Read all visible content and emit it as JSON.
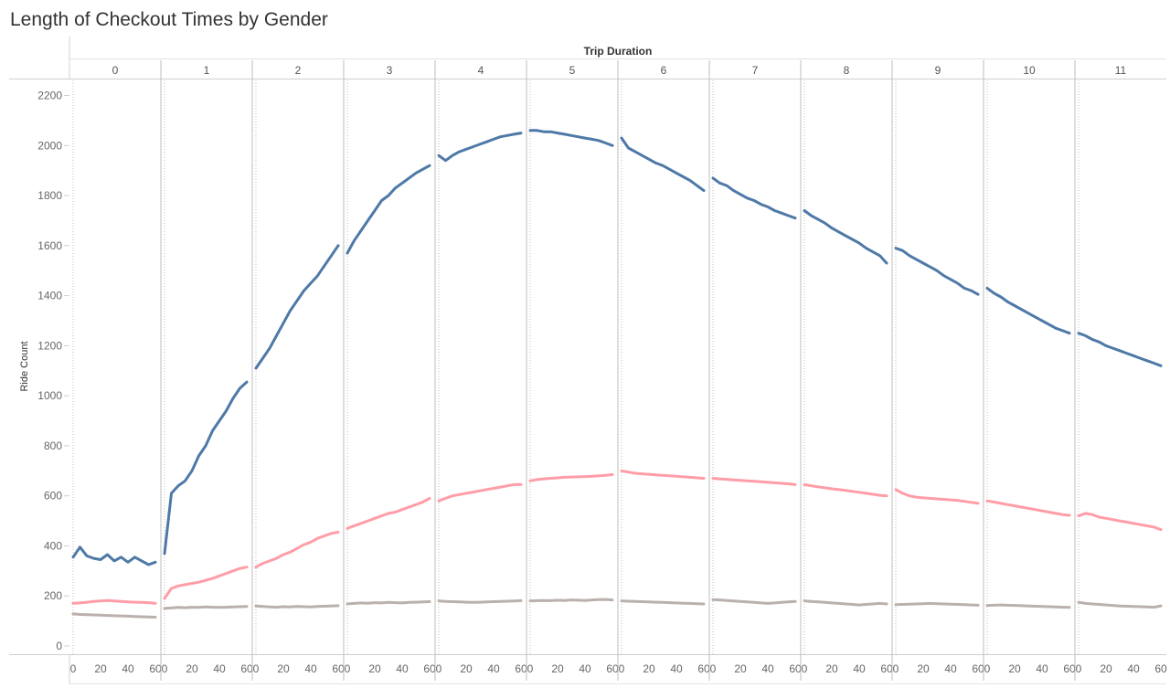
{
  "chart_data": {
    "type": "line",
    "title": "Length of Checkout Times by Gender",
    "column_header": "Trip Duration",
    "ylabel": "Ride Count",
    "ylim": [
      0,
      2250
    ],
    "yticks": [
      0,
      200,
      400,
      600,
      800,
      1000,
      1200,
      1400,
      1600,
      1800,
      2000,
      2200
    ],
    "panels": [
      "0",
      "1",
      "2",
      "3",
      "4",
      "5",
      "6",
      "7",
      "8",
      "9",
      "10",
      "11"
    ],
    "panel_xlim": [
      0,
      60
    ],
    "panel_xticks": [
      0,
      20,
      40,
      60
    ],
    "x_sample_step": 5,
    "gridlines": "dotted vertical at x=0 in each panel",
    "series": [
      {
        "color": "#4e79a7",
        "panels": [
          [
            355,
            395,
            360,
            350,
            345,
            365,
            340,
            355,
            335,
            355,
            340,
            325,
            335
          ],
          [
            370,
            610,
            640,
            660,
            700,
            760,
            800,
            860,
            900,
            940,
            990,
            1030,
            1055
          ],
          [
            1110,
            1150,
            1190,
            1240,
            1290,
            1340,
            1380,
            1420,
            1450,
            1480,
            1520,
            1560,
            1600
          ],
          [
            1570,
            1620,
            1660,
            1700,
            1740,
            1780,
            1800,
            1830,
            1850,
            1870,
            1890,
            1905,
            1920
          ],
          [
            1960,
            1940,
            1960,
            1975,
            1985,
            1995,
            2005,
            2015,
            2025,
            2035,
            2040,
            2045,
            2050
          ],
          [
            2060,
            2060,
            2055,
            2055,
            2050,
            2045,
            2040,
            2035,
            2030,
            2025,
            2020,
            2010,
            2000
          ],
          [
            2030,
            1990,
            1975,
            1960,
            1945,
            1930,
            1920,
            1905,
            1890,
            1875,
            1860,
            1840,
            1820
          ],
          [
            1870,
            1850,
            1840,
            1820,
            1805,
            1790,
            1780,
            1765,
            1755,
            1740,
            1730,
            1720,
            1710
          ],
          [
            1740,
            1720,
            1705,
            1690,
            1670,
            1655,
            1640,
            1625,
            1610,
            1590,
            1575,
            1560,
            1530
          ],
          [
            1590,
            1580,
            1560,
            1545,
            1530,
            1515,
            1500,
            1480,
            1465,
            1450,
            1430,
            1420,
            1405
          ],
          [
            1430,
            1410,
            1395,
            1375,
            1360,
            1345,
            1330,
            1315,
            1300,
            1285,
            1270,
            1260,
            1250
          ],
          [
            1250,
            1240,
            1225,
            1215,
            1200,
            1190,
            1180,
            1170,
            1160,
            1150,
            1140,
            1130,
            1120
          ]
        ]
      },
      {
        "color": "#ff9da7",
        "panels": [
          [
            170,
            172,
            175,
            178,
            180,
            182,
            180,
            178,
            176,
            175,
            174,
            173,
            170
          ],
          [
            190,
            230,
            240,
            245,
            250,
            255,
            262,
            270,
            280,
            290,
            300,
            310,
            315
          ],
          [
            315,
            330,
            340,
            350,
            365,
            375,
            390,
            405,
            415,
            430,
            440,
            450,
            455
          ],
          [
            470,
            480,
            490,
            500,
            510,
            520,
            530,
            535,
            545,
            555,
            565,
            575,
            590
          ],
          [
            580,
            590,
            600,
            605,
            610,
            615,
            620,
            625,
            630,
            635,
            640,
            645,
            645
          ],
          [
            660,
            665,
            668,
            670,
            672,
            674,
            675,
            676,
            677,
            678,
            680,
            682,
            685
          ],
          [
            700,
            695,
            690,
            688,
            686,
            684,
            682,
            680,
            678,
            676,
            674,
            672,
            670
          ],
          [
            670,
            668,
            666,
            664,
            662,
            660,
            658,
            656,
            654,
            652,
            650,
            648,
            645
          ],
          [
            645,
            640,
            636,
            632,
            628,
            625,
            622,
            618,
            614,
            610,
            606,
            602,
            600
          ],
          [
            625,
            610,
            600,
            595,
            592,
            590,
            588,
            586,
            584,
            582,
            578,
            574,
            570
          ],
          [
            580,
            575,
            570,
            565,
            560,
            555,
            550,
            545,
            540,
            535,
            530,
            525,
            522
          ],
          [
            520,
            530,
            525,
            515,
            510,
            505,
            500,
            495,
            490,
            485,
            480,
            475,
            465
          ]
        ]
      },
      {
        "color": "#bab0ac",
        "panels": [
          [
            128,
            126,
            125,
            124,
            123,
            122,
            121,
            120,
            119,
            118,
            117,
            116,
            115
          ],
          [
            150,
            152,
            154,
            153,
            155,
            154,
            156,
            155,
            154,
            155,
            156,
            157,
            158
          ],
          [
            160,
            158,
            156,
            155,
            157,
            156,
            158,
            157,
            156,
            158,
            159,
            160,
            161
          ],
          [
            168,
            170,
            172,
            171,
            173,
            172,
            174,
            173,
            172,
            174,
            175,
            176,
            177
          ],
          [
            180,
            178,
            177,
            176,
            175,
            174,
            175,
            176,
            177,
            178,
            179,
            180,
            181
          ],
          [
            180,
            181,
            182,
            181,
            183,
            182,
            184,
            183,
            182,
            184,
            185,
            186,
            184
          ],
          [
            180,
            179,
            178,
            177,
            176,
            175,
            174,
            173,
            172,
            171,
            170,
            169,
            168
          ],
          [
            185,
            184,
            182,
            180,
            178,
            176,
            174,
            172,
            170,
            172,
            174,
            176,
            178
          ],
          [
            180,
            178,
            176,
            174,
            172,
            170,
            168,
            166,
            164,
            166,
            168,
            170,
            168
          ],
          [
            165,
            166,
            167,
            168,
            169,
            170,
            169,
            168,
            167,
            166,
            165,
            164,
            163
          ],
          [
            162,
            163,
            164,
            163,
            162,
            161,
            160,
            159,
            158,
            157,
            156,
            155,
            154
          ],
          [
            175,
            170,
            168,
            166,
            164,
            162,
            160,
            159,
            158,
            157,
            156,
            155,
            160
          ]
        ]
      }
    ]
  }
}
